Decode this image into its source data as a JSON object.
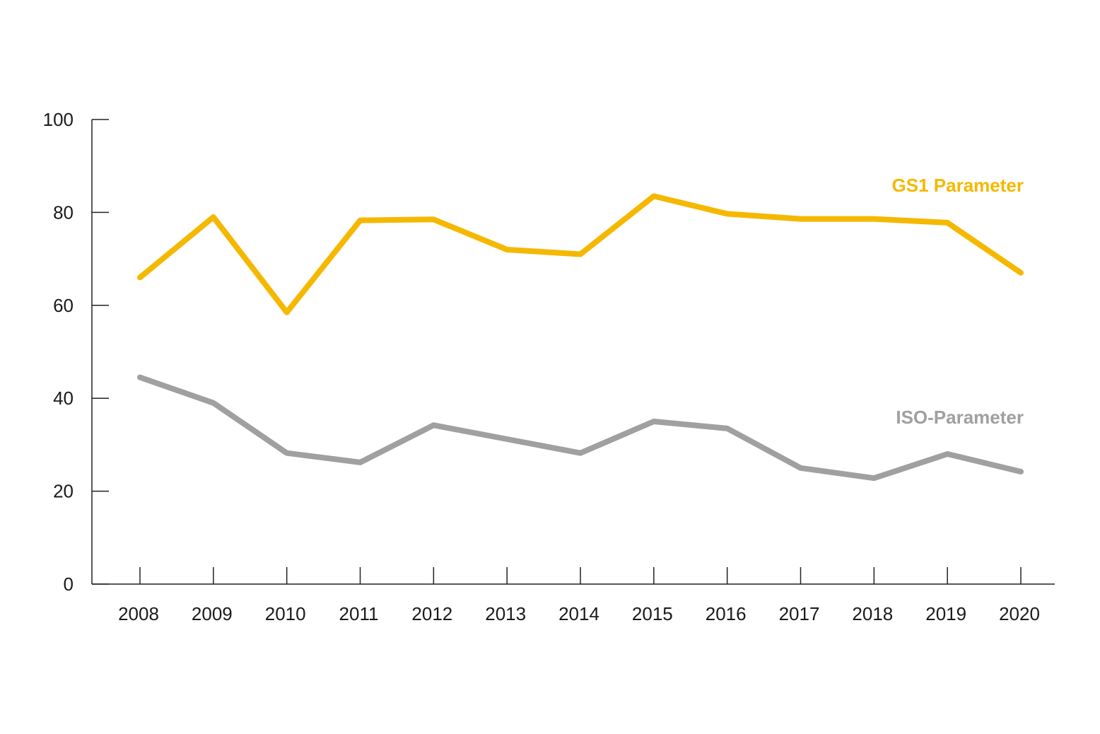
{
  "chart_data": {
    "type": "line",
    "title": "",
    "xlabel": "",
    "ylabel": "",
    "categories": [
      "2008",
      "2009",
      "2010",
      "2011",
      "2012",
      "2013",
      "2014",
      "2015",
      "2016",
      "2017",
      "2018",
      "2019",
      "2020"
    ],
    "ylim": [
      0,
      100
    ],
    "yticks": [
      "0",
      "20",
      "40",
      "60",
      "80",
      "100"
    ],
    "grid": false,
    "legend": "inline-right",
    "series": [
      {
        "name": "GS1 Parameter",
        "color": "#F5B800",
        "values": [
          66,
          79,
          58.5,
          78.3,
          78.5,
          72,
          71,
          83.5,
          79.7,
          78.6,
          78.6,
          77.8,
          67
        ]
      },
      {
        "name": "ISO-Parameter",
        "color": "#A0A0A0",
        "values": [
          44.5,
          39,
          28.2,
          26.2,
          34.2,
          31.2,
          28.2,
          35,
          33.5,
          25,
          22.8,
          28,
          24.2
        ]
      }
    ]
  }
}
